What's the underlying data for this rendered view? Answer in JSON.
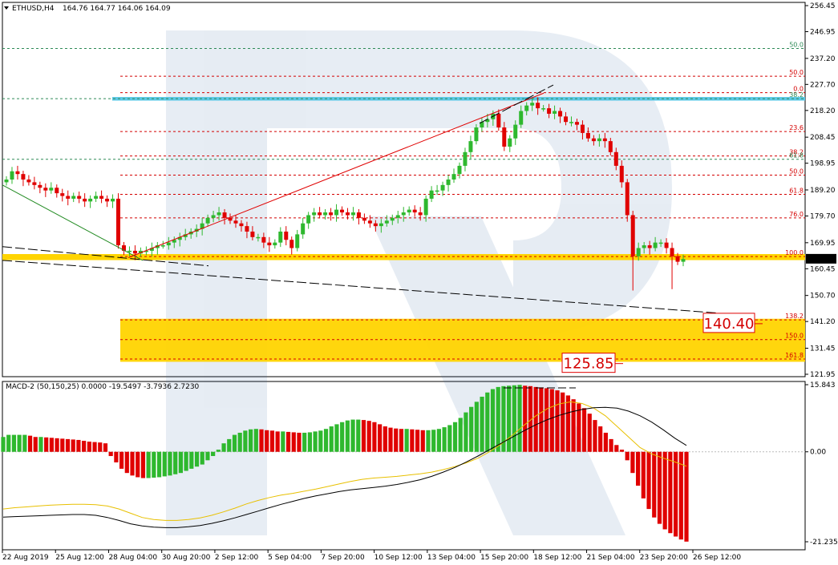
{
  "chart_title": {
    "symbol": "ETHUSD,H4",
    "ohlc": "164.76 164.77 164.06 164.09"
  },
  "macd_title": "MACD-2 (50,150,25) 0.0000 -19.5497 -3.7936 2.7230",
  "price_axis": {
    "ticks": [
      "256.45",
      "246.95",
      "237.20",
      "227.70",
      "218.20",
      "208.45",
      "198.95",
      "189.20",
      "179.70",
      "169.95",
      "160.45",
      "150.70",
      "141.20",
      "131.45",
      "121.95"
    ],
    "ticks_values": [
      256.45,
      246.95,
      237.2,
      227.7,
      218.2,
      208.45,
      198.95,
      189.2,
      179.7,
      169.95,
      160.45,
      150.7,
      141.2,
      131.45,
      121.95
    ],
    "current_price": "164.09"
  },
  "macd_axis": {
    "ticks": [
      "15.843",
      "0.00",
      "-21.2351"
    ],
    "ticks_values": [
      15.843,
      0.0,
      -21.2351
    ]
  },
  "time_axis": {
    "labels": [
      "22 Aug 2019",
      "25 Aug 12:00",
      "28 Aug 04:00",
      "30 Aug 20:00",
      "2 Sep 12:00",
      "5 Sep 04:00",
      "7 Sep 20:00",
      "10 Sep 12:00",
      "13 Sep 04:00",
      "15 Sep 20:00",
      "18 Sep 12:00",
      "21 Sep 04:00",
      "23 Sep 20:00",
      "26 Sep 12:00"
    ]
  },
  "fib_levels_upper": [
    {
      "label": "50.0",
      "value": 240.8,
      "color": "#2e8b57"
    },
    {
      "label": "50.0",
      "value": 230.7,
      "color": "#d40000"
    },
    {
      "label": "0.0",
      "value": 224.7,
      "color": "#d40000"
    },
    {
      "label": "38.2",
      "value": 222.5,
      "color": "#2e8b57"
    }
  ],
  "fib_levels_lower": [
    {
      "label": "23.6",
      "value": 210.5,
      "color": "#d40000"
    },
    {
      "label": "38.2",
      "value": 201.6,
      "color": "#d40000"
    },
    {
      "label": "61.8",
      "value": 200.4,
      "color": "#2e8b57"
    },
    {
      "label": "50.0",
      "value": 194.6,
      "color": "#d40000"
    },
    {
      "label": "61.8",
      "value": 187.6,
      "color": "#d40000"
    },
    {
      "label": "76.0",
      "value": 179.0,
      "color": "#d40000"
    },
    {
      "label": "100.0",
      "value": 164.9,
      "color": "#d40000"
    },
    {
      "label": "138.2",
      "value": 141.8,
      "color": "#d40000"
    },
    {
      "label": "150.0",
      "value": 134.6,
      "color": "#d40000"
    },
    {
      "label": "161.8",
      "value": 127.5,
      "color": "#d40000"
    }
  ],
  "targets": [
    {
      "label": "140.40",
      "value": 140.4
    },
    {
      "label": "125.85",
      "value": 125.85
    }
  ],
  "colors": {
    "bull": "#2eb82e",
    "bear": "#e00000",
    "fib_red": "#d40000",
    "fib_green": "#2e8b57",
    "support_band": "#ffd400",
    "resistance_band": "#5bc8e6",
    "macd_signal": "#e8c000",
    "macd_main": "#000000"
  },
  "chart_data": {
    "type": "candlestick",
    "title": "ETHUSD,H4",
    "ylim": [
      121.95,
      256.45
    ],
    "x_labels": [
      "22 Aug 2019",
      "25 Aug 12:00",
      "28 Aug 04:00",
      "30 Aug 20:00",
      "2 Sep 12:00",
      "5 Sep 04:00",
      "7 Sep 20:00",
      "10 Sep 12:00",
      "13 Sep 04:00",
      "15 Sep 20:00",
      "18 Sep 12:00",
      "21 Sep 04:00",
      "23 Sep 20:00",
      "26 Sep 12:00"
    ],
    "price_path": [
      193,
      196,
      195,
      193,
      192,
      191,
      190,
      189,
      190,
      188,
      187,
      186,
      187,
      186,
      185,
      186,
      187,
      186,
      185,
      186,
      169,
      167,
      167,
      166,
      167,
      167,
      168,
      169,
      169,
      170,
      171,
      172,
      173,
      174,
      175,
      177,
      179,
      180,
      181,
      179,
      178,
      177,
      176,
      174,
      172,
      172,
      170,
      169,
      170,
      174,
      171,
      168,
      173,
      177,
      180,
      181,
      180,
      181,
      180,
      182,
      181,
      180,
      181,
      179,
      178,
      177,
      176,
      177,
      178,
      179,
      180,
      181,
      182,
      181,
      180,
      186,
      189,
      189,
      191,
      193,
      195,
      198,
      203,
      207,
      212,
      214,
      215,
      217,
      212,
      205,
      208,
      213,
      218,
      220,
      221,
      219,
      219,
      217,
      218,
      216,
      214,
      214,
      213,
      210,
      208,
      207,
      208,
      207,
      203,
      198,
      192,
      180,
      165,
      168,
      169,
      168,
      170,
      170,
      168,
      165,
      163,
      164
    ],
    "macd_histogram": [
      3.5,
      4,
      4,
      4,
      4,
      3.8,
      3.5,
      3.5,
      3.4,
      3.3,
      3.2,
      3.1,
      3,
      2.9,
      2.8,
      2.6,
      2.4,
      2.3,
      2.2,
      2,
      -1,
      -2.5,
      -4,
      -5,
      -5.6,
      -6,
      -6.2,
      -6.2,
      -6.1,
      -6,
      -5.8,
      -5.6,
      -5.3,
      -5,
      -4.5,
      -4,
      -3.5,
      -3,
      -2,
      -1,
      0.5,
      2,
      3,
      4,
      4.5,
      5,
      5.3,
      5.4,
      5.3,
      5.1,
      5,
      4.8,
      4.8,
      4.7,
      4.6,
      4.5,
      4.5,
      4.6,
      4.8,
      5,
      5.4,
      6,
      6.5,
      7,
      7.4,
      7.6,
      7.6,
      7.5,
      7.3,
      7,
      6.5,
      6,
      5.7,
      5.5,
      5.4,
      5.4,
      5.3,
      5.2,
      5.1,
      5.1,
      5.2,
      5.4,
      5.8,
      6.3,
      7,
      8,
      9.3,
      10.6,
      11.8,
      13,
      14,
      14.8,
      15.3,
      15.5,
      15.6,
      15.7,
      15.8,
      15.6,
      15.5,
      15.3,
      15.2,
      15,
      14.8,
      14.5,
      14,
      13.3,
      12.4,
      11.4,
      10.3,
      9,
      7.5,
      6,
      4.5,
      3,
      1.6,
      0.5,
      -2,
      -5,
      -8,
      -11,
      -13.5,
      -15.5,
      -17,
      -18.3,
      -19.2,
      -20,
      -20.7,
      -21.2
    ],
    "macd_signal_line": [
      -13.5,
      -13.2,
      -13,
      -12.8,
      -12.6,
      -12.5,
      -12.4,
      -12.4,
      -12.5,
      -12.8,
      -13.5,
      -14.5,
      -15.5,
      -16,
      -16.2,
      -16.2,
      -16,
      -15.6,
      -15,
      -14.2,
      -13.3,
      -12.3,
      -11.5,
      -10.8,
      -10.2,
      -9.8,
      -9.3,
      -8.8,
      -8.2,
      -7.6,
      -7,
      -6.5,
      -6.2,
      -6,
      -5.8,
      -5.5,
      -5.2,
      -4.8,
      -4.2,
      -3.5,
      -2.6,
      -1.5,
      0,
      1.8,
      4,
      6.3,
      8.5,
      10.2,
      11.3,
      11.8,
      11.4,
      10.3,
      8.5,
      6,
      3.5,
      1,
      -0.5,
      -1.5,
      -2.4,
      -3.4
    ],
    "macd_main_line": [
      -15.4,
      -15.3,
      -15.2,
      -15.1,
      -15,
      -14.9,
      -14.8,
      -14.8,
      -15,
      -15.5,
      -16.2,
      -17,
      -17.5,
      -17.8,
      -17.9,
      -17.9,
      -17.7,
      -17.4,
      -16.9,
      -16.3,
      -15.6,
      -14.8,
      -14,
      -13.2,
      -12.4,
      -11.7,
      -11,
      -10.4,
      -9.9,
      -9.4,
      -9,
      -8.7,
      -8.4,
      -8.1,
      -7.7,
      -7.2,
      -6.6,
      -5.8,
      -4.8,
      -3.7,
      -2.4,
      -1,
      0.5,
      2,
      3.5,
      5,
      6.4,
      7.6,
      8.6,
      9.4,
      10,
      10.4,
      10.5,
      10.3,
      9.6,
      8.5,
      7,
      5.2,
      3.2,
      1.5
    ]
  }
}
